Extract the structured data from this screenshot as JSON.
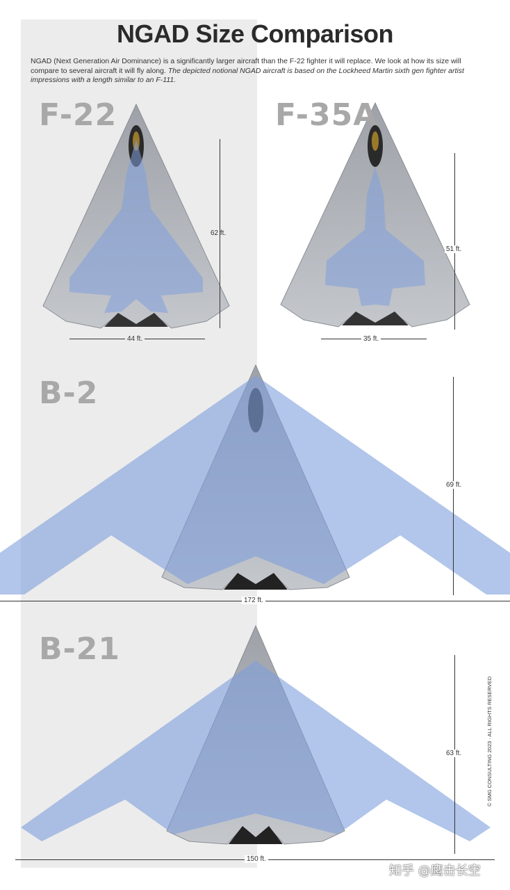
{
  "title": "NGAD Size Comparison",
  "intro_text": "NGAD (Next Generation Air Dominance) is a significantly larger aircraft than the F-22 fighter it will replace. We look at how its size will compare to several aircraft it will fly along.",
  "intro_italic": "The depicted notional NGAD aircraft is based on the Lockheed Martin sixth gen fighter artist impressions with a length similar to an F-111.",
  "panels": {
    "f22": {
      "label": "F-22",
      "length": "62 ft.",
      "wingspan": "44 ft."
    },
    "f35": {
      "label": "F-35A",
      "length": "51 ft.",
      "wingspan": "35 ft."
    },
    "b2": {
      "label": "B-2",
      "length": "69 ft.",
      "wingspan": "172 ft."
    },
    "b21": {
      "label": "B-21",
      "length": "63 ft.",
      "wingspan": "150 ft."
    }
  },
  "copyright": "© SMG CONSULTING 2023 · ALL RIGHTS RESERVED",
  "watermark": "知乎 @鹰击长空",
  "colors": {
    "overlay_blue": "#7f9fdc",
    "ngad_gray": "#b9bcc2",
    "label_gray": "#a8a8a8"
  }
}
